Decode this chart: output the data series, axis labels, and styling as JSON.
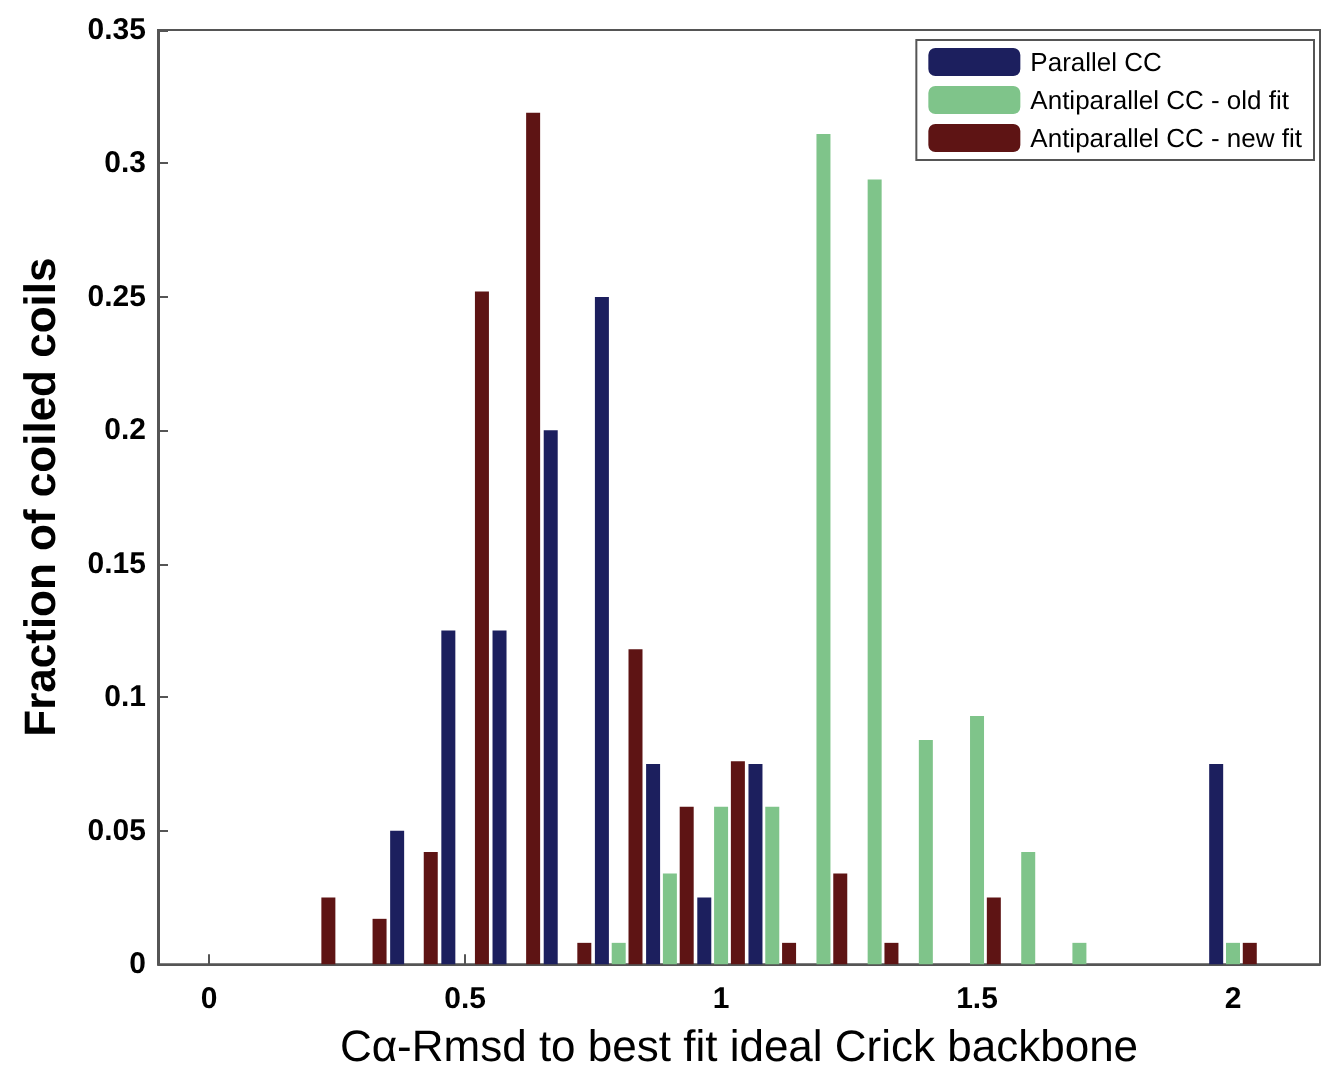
{
  "chart_data": {
    "type": "bar",
    "xlabel": "Cα-Rmsd to best fit ideal Crick backbone",
    "ylabel": "Fraction of coiled coils",
    "x": [
      0.2,
      0.3,
      0.4,
      0.5,
      0.6,
      0.7,
      0.8,
      0.9,
      1.0,
      1.1,
      1.2,
      1.3,
      1.4,
      1.5,
      1.6,
      1.7,
      1.8,
      1.9,
      2.0
    ],
    "series": [
      {
        "name": "Parallel CC",
        "color": "#1c1f5e",
        "values": [
          0,
          0,
          0.05,
          0.125,
          0.125,
          0.2,
          0.25,
          0.075,
          0.025,
          0.075,
          0,
          0,
          0,
          0,
          0,
          0,
          0,
          0,
          0.075
        ]
      },
      {
        "name": "Antiparallel CC - old fit",
        "color": "#7fc48a",
        "values": [
          0,
          0,
          0,
          0,
          0,
          0,
          0.008,
          0.034,
          0.059,
          0.059,
          0.311,
          0.294,
          0.084,
          0.093,
          0.042,
          0.008,
          0,
          0,
          0.008
        ]
      },
      {
        "name": "Antiparallel CC - new fit",
        "color": "#5e1414",
        "values": [
          0.025,
          0.017,
          0.042,
          0.252,
          0.319,
          0.008,
          0.118,
          0.059,
          0.076,
          0.008,
          0.034,
          0.008,
          0,
          0.025,
          0,
          0,
          0,
          0,
          0.008
        ]
      }
    ],
    "xlim": [
      -0.1,
      2.17
    ],
    "xticks": [
      0,
      0.5,
      1,
      1.5,
      2
    ],
    "ylim": [
      0,
      0.35
    ],
    "yticks": [
      0,
      0.05,
      0.1,
      0.15,
      0.2,
      0.25,
      0.3,
      0.35
    ],
    "grid": false,
    "legend": "top right"
  }
}
